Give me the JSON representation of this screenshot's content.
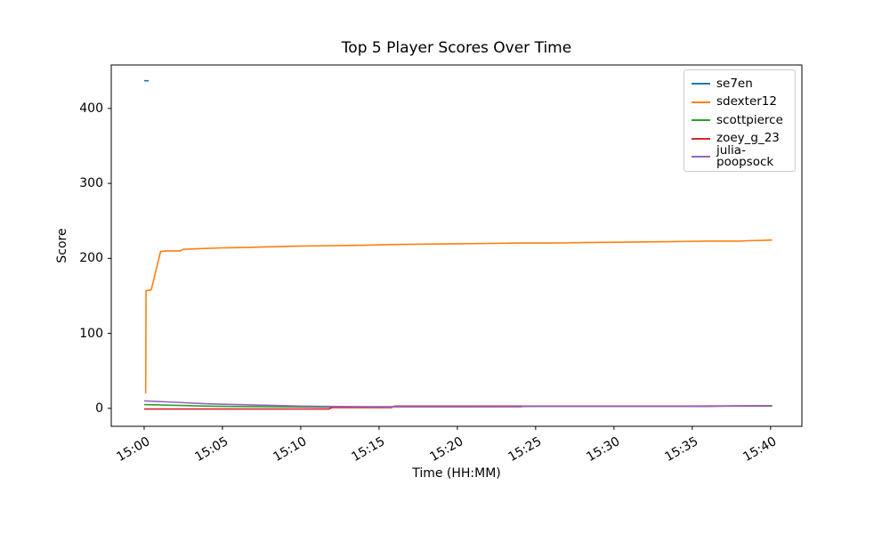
{
  "chart_data": {
    "type": "line",
    "title": "Top 5 Player Scores Over Time",
    "xlabel": "Time (HH:MM)",
    "ylabel": "Score",
    "grid": false,
    "legend_position": "upper right",
    "x_unit": "minutes after 15:00",
    "xlim_minutes": [
      -2.1,
      42.0
    ],
    "ylim": [
      -24,
      458
    ],
    "x_ticks": [
      {
        "minute": 0,
        "label": "15:00"
      },
      {
        "minute": 5,
        "label": "15:05"
      },
      {
        "minute": 10,
        "label": "15:10"
      },
      {
        "minute": 15,
        "label": "15:15"
      },
      {
        "minute": 20,
        "label": "15:20"
      },
      {
        "minute": 25,
        "label": "15:25"
      },
      {
        "minute": 30,
        "label": "15:30"
      },
      {
        "minute": 35,
        "label": "15:35"
      },
      {
        "minute": 40,
        "label": "15:40"
      }
    ],
    "y_ticks": [
      0,
      100,
      200,
      300,
      400
    ],
    "x_tick_rotation_deg": 30,
    "series": [
      {
        "name": "se7en",
        "color": "#1f77b4",
        "points": [
          [
            0,
            437
          ],
          [
            0.3,
            437
          ]
        ]
      },
      {
        "name": "sdexter12",
        "color": "#ff7f0e",
        "points": [
          [
            0.1,
            20
          ],
          [
            0.12,
            157
          ],
          [
            0.45,
            158
          ],
          [
            1.05,
            209
          ],
          [
            1.4,
            210
          ],
          [
            2.3,
            210
          ],
          [
            2.5,
            212
          ],
          [
            3.5,
            213
          ],
          [
            5,
            214
          ],
          [
            6.5,
            214.5
          ],
          [
            8,
            215.5
          ],
          [
            10,
            216.5
          ],
          [
            12,
            217
          ],
          [
            14,
            217.5
          ],
          [
            16,
            218.5
          ],
          [
            18,
            219
          ],
          [
            20,
            219.5
          ],
          [
            22,
            220
          ],
          [
            24,
            220.5
          ],
          [
            26,
            220.5
          ],
          [
            28,
            221
          ],
          [
            30,
            221.5
          ],
          [
            32,
            222
          ],
          [
            34,
            222.5
          ],
          [
            36,
            223
          ],
          [
            38,
            223
          ],
          [
            38.5,
            223.5
          ],
          [
            39.5,
            224
          ],
          [
            40.1,
            224.5
          ]
        ]
      },
      {
        "name": "scottpierce",
        "color": "#2ca02c",
        "points": [
          [
            0,
            5
          ],
          [
            2,
            4
          ],
          [
            4,
            3
          ],
          [
            6,
            2.5
          ],
          [
            9,
            2
          ],
          [
            12,
            1.5
          ],
          [
            16,
            2
          ],
          [
            20,
            2
          ],
          [
            25,
            2.5
          ],
          [
            30,
            2.5
          ],
          [
            35,
            3
          ],
          [
            40.1,
            3
          ]
        ]
      },
      {
        "name": "zoey_g_23",
        "color": "#d62728",
        "points": [
          [
            0,
            -1
          ],
          [
            11.8,
            -1
          ],
          [
            12,
            1
          ],
          [
            15.8,
            1
          ],
          [
            16,
            3
          ],
          [
            24,
            3
          ],
          [
            30,
            3
          ],
          [
            35,
            3
          ],
          [
            40.1,
            3.5
          ]
        ]
      },
      {
        "name": "julia-poopsock",
        "color": "#9467bd",
        "points": [
          [
            0,
            10
          ],
          [
            2,
            8
          ],
          [
            4,
            6
          ],
          [
            6,
            5
          ],
          [
            8,
            4
          ],
          [
            10,
            3
          ],
          [
            12,
            2.5
          ],
          [
            15,
            2
          ],
          [
            20,
            2
          ],
          [
            24,
            2
          ],
          [
            24.2,
            2.5
          ],
          [
            30,
            2.5
          ],
          [
            36,
            2.5
          ],
          [
            37,
            3
          ],
          [
            40.1,
            3.5
          ]
        ]
      }
    ]
  }
}
